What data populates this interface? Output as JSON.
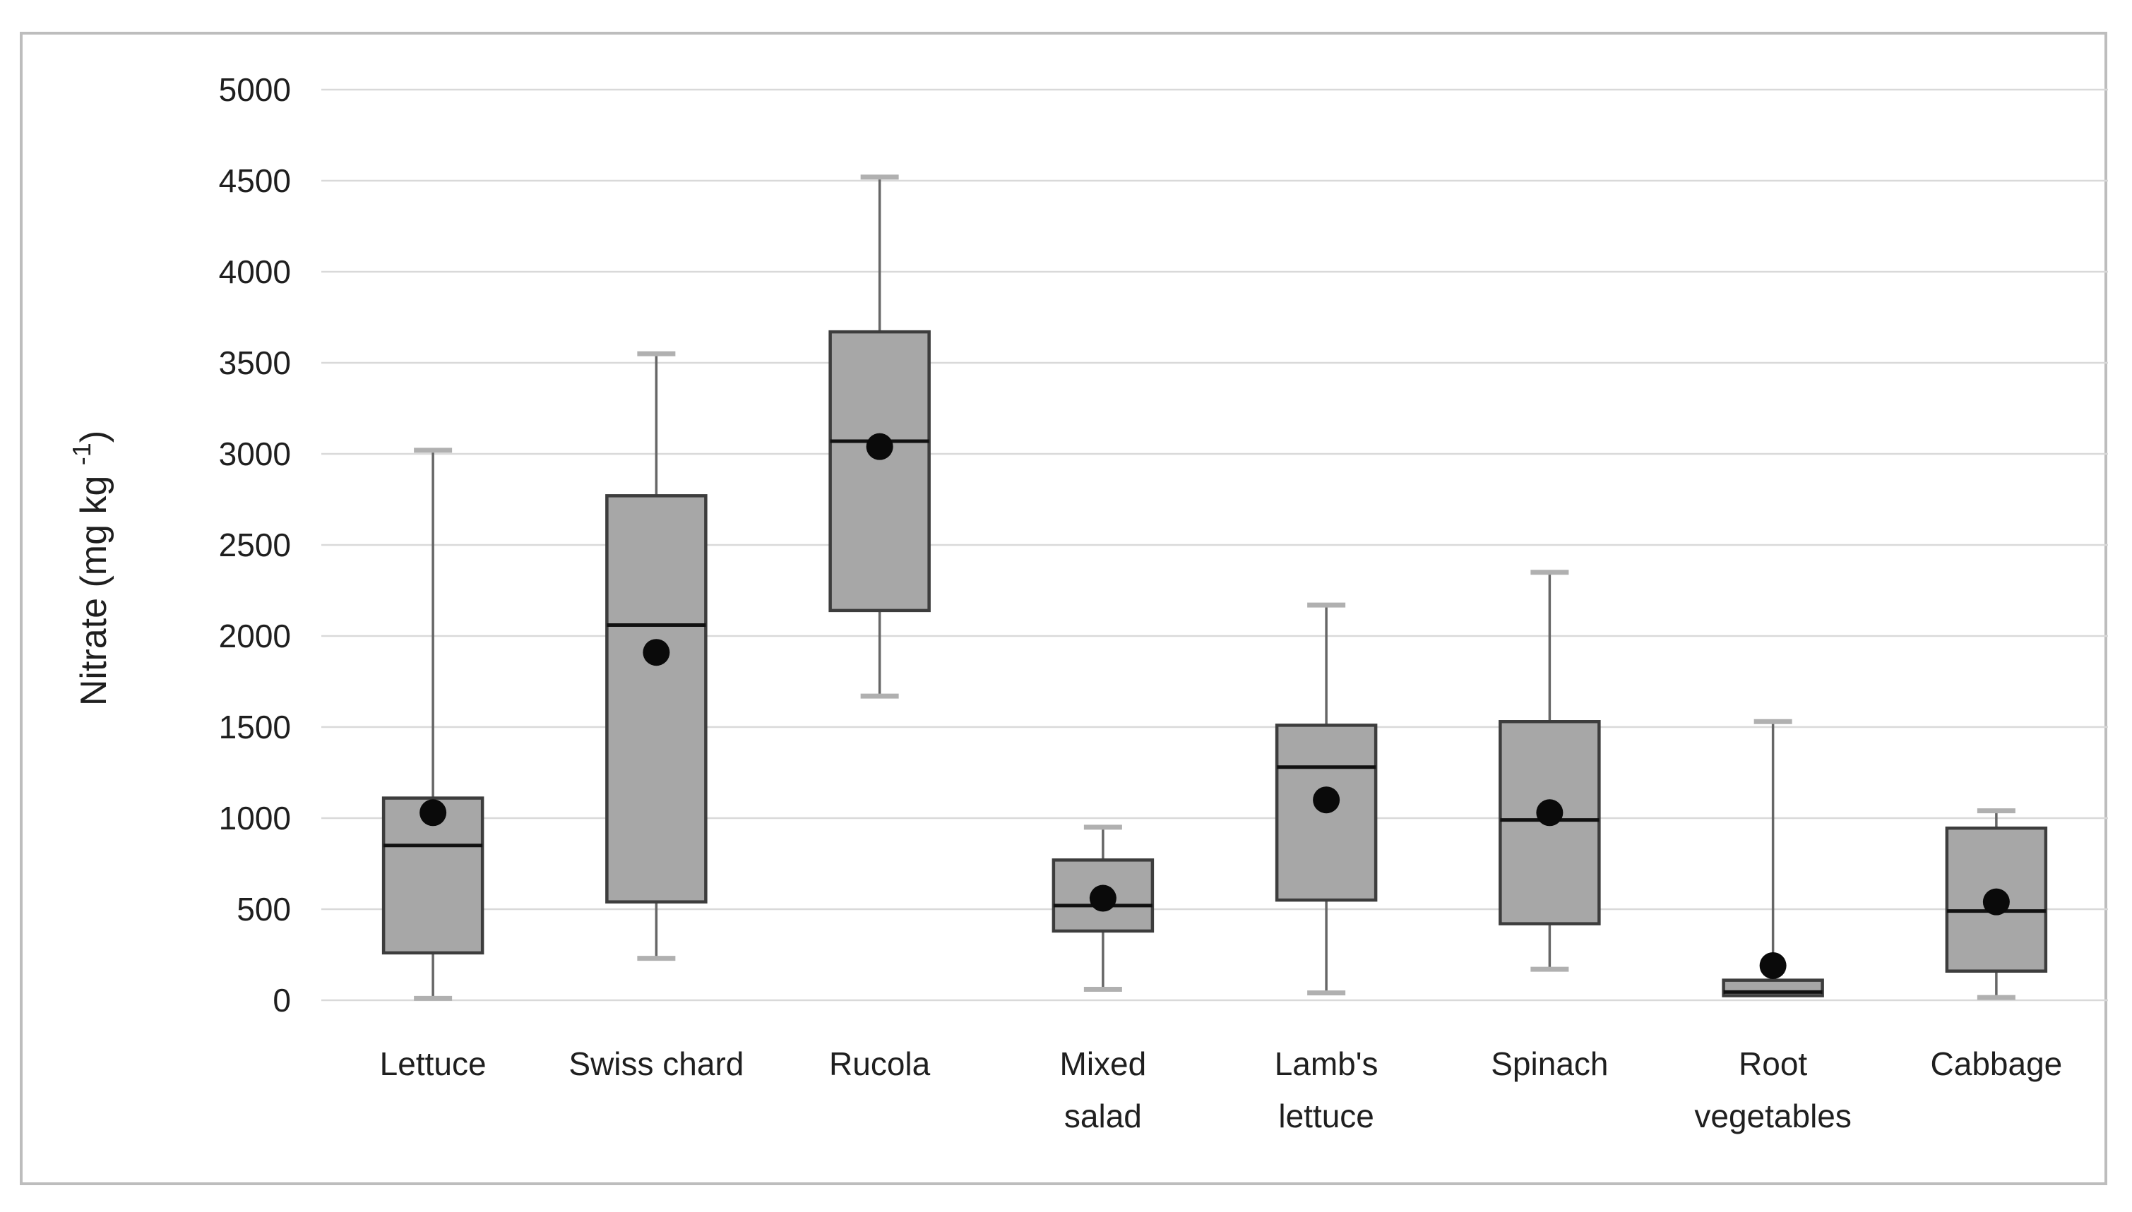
{
  "figure": {
    "background": "#ffffff",
    "frame_border_color": "#bdbdbd"
  },
  "colors": {
    "box_fill": "#a7a7a7",
    "box_border": "#3d3d3d",
    "median_line": "#111111",
    "whisker_line": "#666666",
    "whisker_cap": "#b0b0b0",
    "mean_dot": "#0a0a0a",
    "gridline": "#d9d9d9",
    "tick_text": "#1f1f1f",
    "axis_title_text": "#1f1f1f"
  },
  "chart_data": {
    "type": "box",
    "title": "",
    "ylabel": "Nitrate (mg kg -1)",
    "ylabel_parts": {
      "prefix": "Nitrate  (mg kg ",
      "superscript": "-1",
      "suffix": ")"
    },
    "xlabel": "",
    "ylim": [
      0,
      5000
    ],
    "yticks": [
      0,
      500,
      1000,
      1500,
      2000,
      2500,
      3000,
      3500,
      4000,
      4500,
      5000
    ],
    "grid": true,
    "legend": false,
    "mean_marker": "filled black dot",
    "categories": [
      {
        "id": "lettuce",
        "lines": [
          "Lettuce"
        ]
      },
      {
        "id": "swiss-chard",
        "lines": [
          "Swiss chard"
        ]
      },
      {
        "id": "rucola",
        "lines": [
          "Rucola"
        ]
      },
      {
        "id": "mixed-salad",
        "lines": [
          "Mixed",
          "salad"
        ]
      },
      {
        "id": "lambs-lettuce",
        "lines": [
          "Lamb's",
          "lettuce"
        ]
      },
      {
        "id": "spinach",
        "lines": [
          "Spinach"
        ]
      },
      {
        "id": "root-vegetables",
        "lines": [
          "Root",
          "vegetables"
        ]
      },
      {
        "id": "cabbage",
        "lines": [
          "Cabbage"
        ]
      }
    ],
    "series": [
      {
        "category": "Lettuce",
        "min": 10,
        "q1": 260,
        "median": 850,
        "q3": 1110,
        "max": 3020,
        "mean": 1030
      },
      {
        "category": "Swiss chard",
        "min": 230,
        "q1": 540,
        "median": 2060,
        "q3": 2770,
        "max": 3550,
        "mean": 1910
      },
      {
        "category": "Rucola",
        "min": 1670,
        "q1": 2140,
        "median": 3070,
        "q3": 3670,
        "max": 4520,
        "mean": 3040
      },
      {
        "category": "Mixed salad",
        "min": 60,
        "q1": 380,
        "median": 520,
        "q3": 770,
        "max": 950,
        "mean": 560
      },
      {
        "category": "Lamb's lettuce",
        "min": 40,
        "q1": 550,
        "median": 1280,
        "q3": 1510,
        "max": 2170,
        "mean": 1100
      },
      {
        "category": "Spinach",
        "min": 170,
        "q1": 420,
        "median": 990,
        "q3": 1530,
        "max": 2350,
        "mean": 1030
      },
      {
        "category": "Root vegetables",
        "min": 25,
        "q1": 25,
        "median": 45,
        "q3": 110,
        "max": 1530,
        "mean": 190
      },
      {
        "category": "Cabbage",
        "min": 15,
        "q1": 160,
        "median": 490,
        "q3": 945,
        "max": 1040,
        "mean": 540
      }
    ]
  }
}
